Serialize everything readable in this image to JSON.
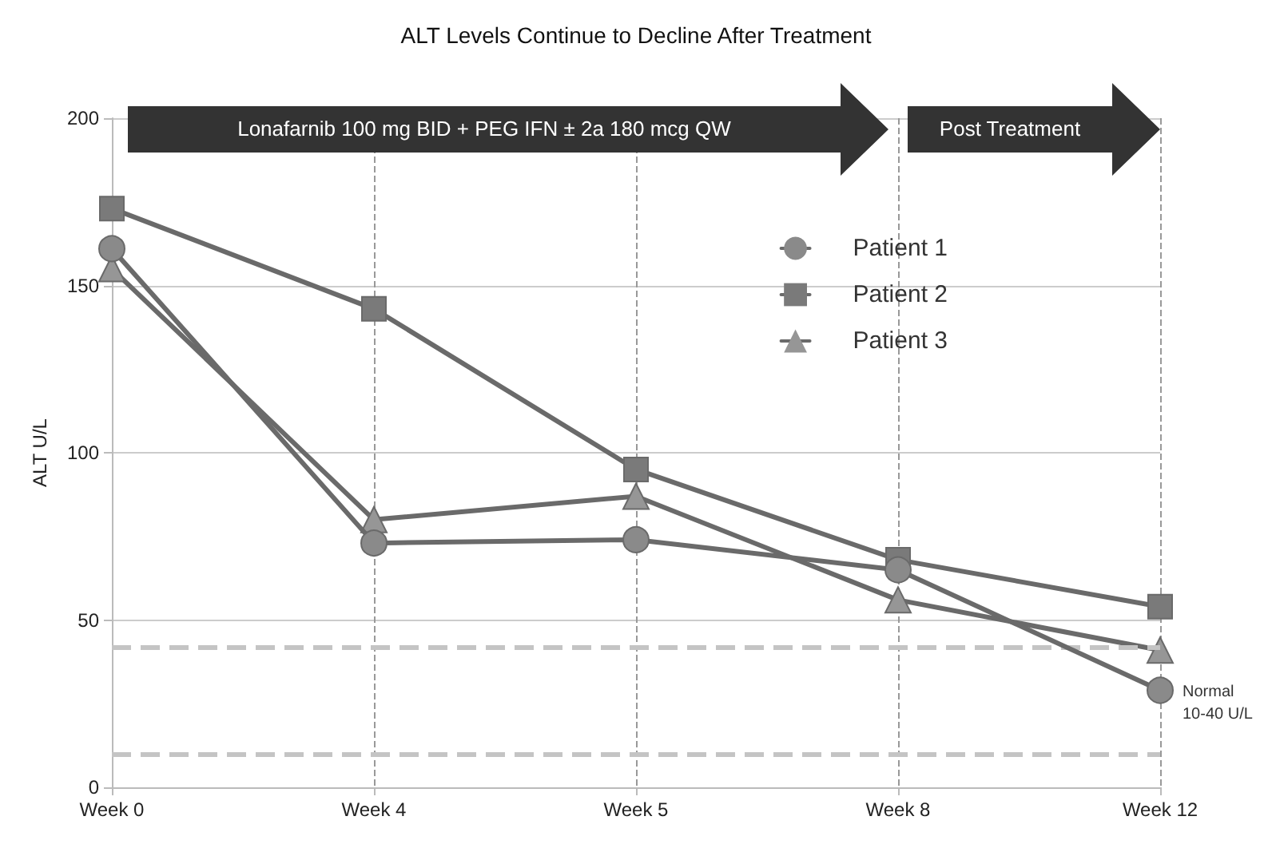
{
  "chart_data": {
    "type": "line",
    "title": "ALT Levels Continue to Decline After Treatment",
    "ylabel": "ALT U/L",
    "categories": [
      "Week 0",
      "Week 4",
      "Week 5",
      "Week 8",
      "Week 12"
    ],
    "series": [
      {
        "name": "Patient 1",
        "color": "#8a8a8a",
        "marker": "circle",
        "values": [
          161,
          73,
          74,
          65,
          29
        ]
      },
      {
        "name": "Patient 2",
        "color": "#7a7a7a",
        "marker": "square",
        "values": [
          173,
          143,
          95,
          68,
          54
        ]
      },
      {
        "name": "Patient 3",
        "color": "#969696",
        "marker": "triangle",
        "values": [
          155,
          80,
          87,
          56,
          41
        ]
      }
    ],
    "ylim": [
      0,
      200
    ],
    "yticks": [
      0,
      50,
      100,
      150,
      200
    ],
    "grid": true,
    "legend": "top right",
    "line_style": "solid",
    "ref_lines": [
      {
        "axis": "y",
        "value": 42,
        "label": null,
        "color": "#c4c4c4",
        "line_style": "dashed"
      },
      {
        "axis": "y",
        "value": 10,
        "label": null,
        "color": "#c4c4c4",
        "line_style": "dashed"
      }
    ],
    "bands": [
      {
        "axis": "x",
        "from": "Week 0",
        "to": "Week 8",
        "label": "Lonafarnib 100 mg BID + PEG IFN ± 2a 180 mcg QW",
        "color": "#333333"
      },
      {
        "axis": "x",
        "from": "Week 8",
        "to": "Week 12",
        "label": "Post Treatment",
        "color": "#333333"
      }
    ],
    "annotations": [
      {
        "text": "Normal\n10-40 U/L",
        "x": "Week 12",
        "y": 25
      }
    ]
  }
}
